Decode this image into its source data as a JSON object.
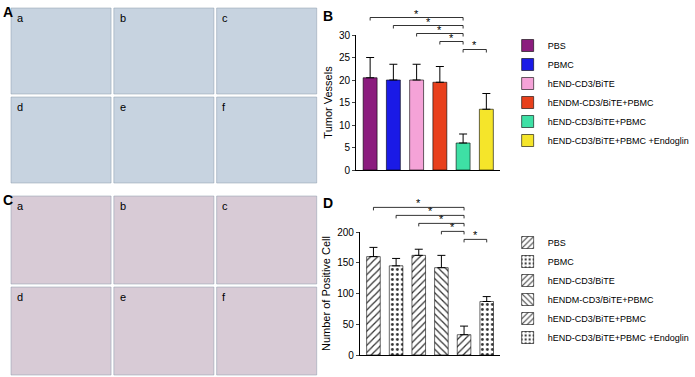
{
  "image_panels": [
    {
      "label": "A",
      "images": [
        "a",
        "b",
        "c",
        "d",
        "e",
        "f"
      ]
    },
    {
      "label": "C",
      "images": [
        "a",
        "b",
        "c",
        "d",
        "e",
        "f"
      ]
    }
  ],
  "chart_data": [
    {
      "panel": "B",
      "type": "bar",
      "y_label": "Tumor Vessels",
      "categories": [
        "PBS",
        "PBMC",
        "hEND-CD3/BiTE",
        "hENDM-CD3/BiTE+PBMC",
        "hEND-CD3/BiTE+PBMC",
        "hEND-CD3/BiTE+PBMC +Endoglin"
      ],
      "values": [
        20.5,
        20,
        20,
        19.5,
        6,
        13.5
      ],
      "errors": [
        4.5,
        3.5,
        3.5,
        3.5,
        2,
        3.5
      ],
      "colors": [
        "#8B1C7E",
        "#1A1AE6",
        "#F5A3D8",
        "#E8401C",
        "#3EE0A5",
        "#F5E52A"
      ],
      "ylim": [
        0,
        30
      ],
      "yticks": [
        0,
        5,
        10,
        15,
        20,
        25,
        30
      ],
      "tick_labels": "y",
      "legend": "right",
      "significance": [
        {
          "from": "hEND-CD3/BiTE+PBMC",
          "to": "hEND-CD3/BiTE+PBMC +Endoglin",
          "text": "*"
        },
        {
          "from": "hENDM-CD3/BiTE+PBMC",
          "to": "hEND-CD3/BiTE+PBMC",
          "text": "*"
        },
        {
          "from": "hEND-CD3/BiTE",
          "to": "hEND-CD3/BiTE+PBMC",
          "text": "*"
        },
        {
          "from": "PBMC",
          "to": "hEND-CD3/BiTE+PBMC",
          "text": "*"
        },
        {
          "from": "PBS",
          "to": "hEND-CD3/BiTE+PBMC",
          "text": "*"
        }
      ]
    },
    {
      "panel": "D",
      "type": "bar",
      "y_label": "Number of Positive Cell",
      "categories": [
        "PBS",
        "PBMC",
        "hEND-CD3/BiTE",
        "hENDM-CD3/BiTE+PBMC",
        "hEND-CD3/BiTE+PBMC",
        "hEND-CD3/BiTE+PBMC +Endoglin"
      ],
      "values": [
        160,
        145,
        162,
        142,
        33,
        87
      ],
      "errors": [
        15,
        12,
        10,
        20,
        14,
        8
      ],
      "colors": [
        "#7FB2E5",
        "#A5EFA5",
        "#F7C0EC",
        "#E08ED4",
        "#E8402A",
        "#FFFFFF"
      ],
      "marker": "hatched",
      "ylim": [
        0,
        200
      ],
      "yticks": [
        0,
        50,
        100,
        150,
        200
      ],
      "tick_labels": "y",
      "legend": "right",
      "significance": [
        {
          "from": "hEND-CD3/BiTE+PBMC",
          "to": "hEND-CD3/BiTE+PBMC +Endoglin",
          "text": "*"
        },
        {
          "from": "hENDM-CD3/BiTE+PBMC",
          "to": "hEND-CD3/BiTE+PBMC",
          "text": "*"
        },
        {
          "from": "hEND-CD3/BiTE",
          "to": "hEND-CD3/BiTE+PBMC",
          "text": "*"
        },
        {
          "from": "PBMC",
          "to": "hEND-CD3/BiTE+PBMC",
          "text": "*"
        },
        {
          "from": "PBS",
          "to": "hEND-CD3/BiTE+PBMC",
          "text": "*"
        }
      ]
    }
  ]
}
